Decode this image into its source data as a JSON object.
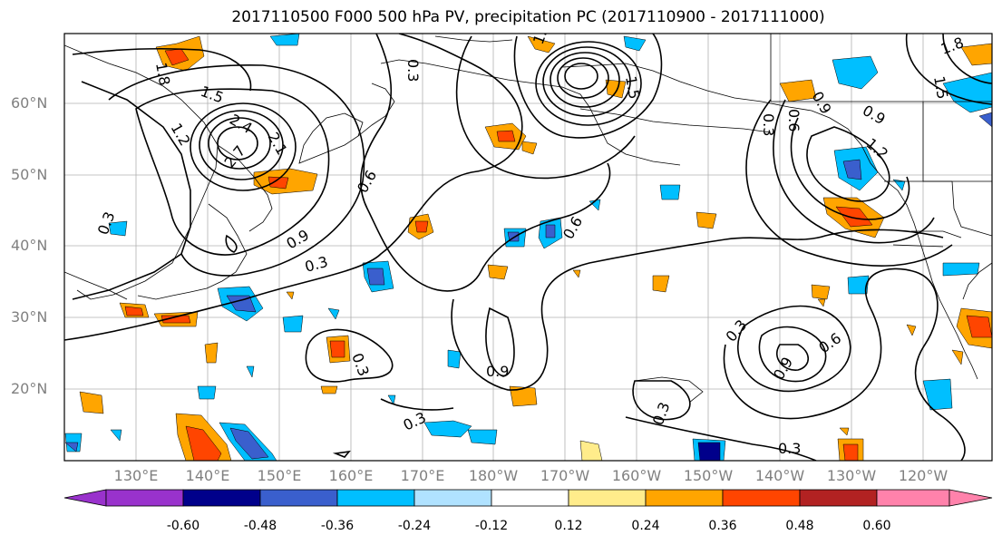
{
  "title": "2017110500 F000 500 hPa PV, precipitation PC (2017110900 - 2017111000)",
  "lat_labels": [
    "60°N",
    "50°N",
    "40°N",
    "30°N",
    "20°N"
  ],
  "lon_labels": [
    "130°E",
    "140°E",
    "150°E",
    "160°E",
    "170°E",
    "180°W",
    "170°W",
    "160°W",
    "150°W",
    "140°W",
    "130°W",
    "120°W"
  ],
  "contour_labels": [
    "1.8",
    "1.5",
    "1.2",
    "2.4",
    "2.1",
    "2.7",
    "0.6",
    "0.3",
    "0.9",
    "0.3",
    "0.3",
    "0.9",
    "0.6",
    "1.8",
    "1.5",
    "0.3",
    "0.6",
    "0.9",
    "1.2",
    "0.9",
    "1.5",
    "1.8",
    "0.3",
    "0.6",
    "0.9",
    "0.3",
    "0.3",
    "0.3",
    "0.3"
  ],
  "colorbar": {
    "ticks": [
      "-0.60",
      "-0.48",
      "-0.36",
      "-0.24",
      "-0.12",
      "0.12",
      "0.24",
      "0.36",
      "0.48",
      "0.60"
    ],
    "colors": [
      "#9932cc",
      "#00008b",
      "#3a5fcd",
      "#00bfff",
      "#b0e2ff",
      "#ffffff",
      "#ffec8b",
      "#ffa500",
      "#ff4500",
      "#b22222",
      "#ff82ab"
    ]
  }
}
